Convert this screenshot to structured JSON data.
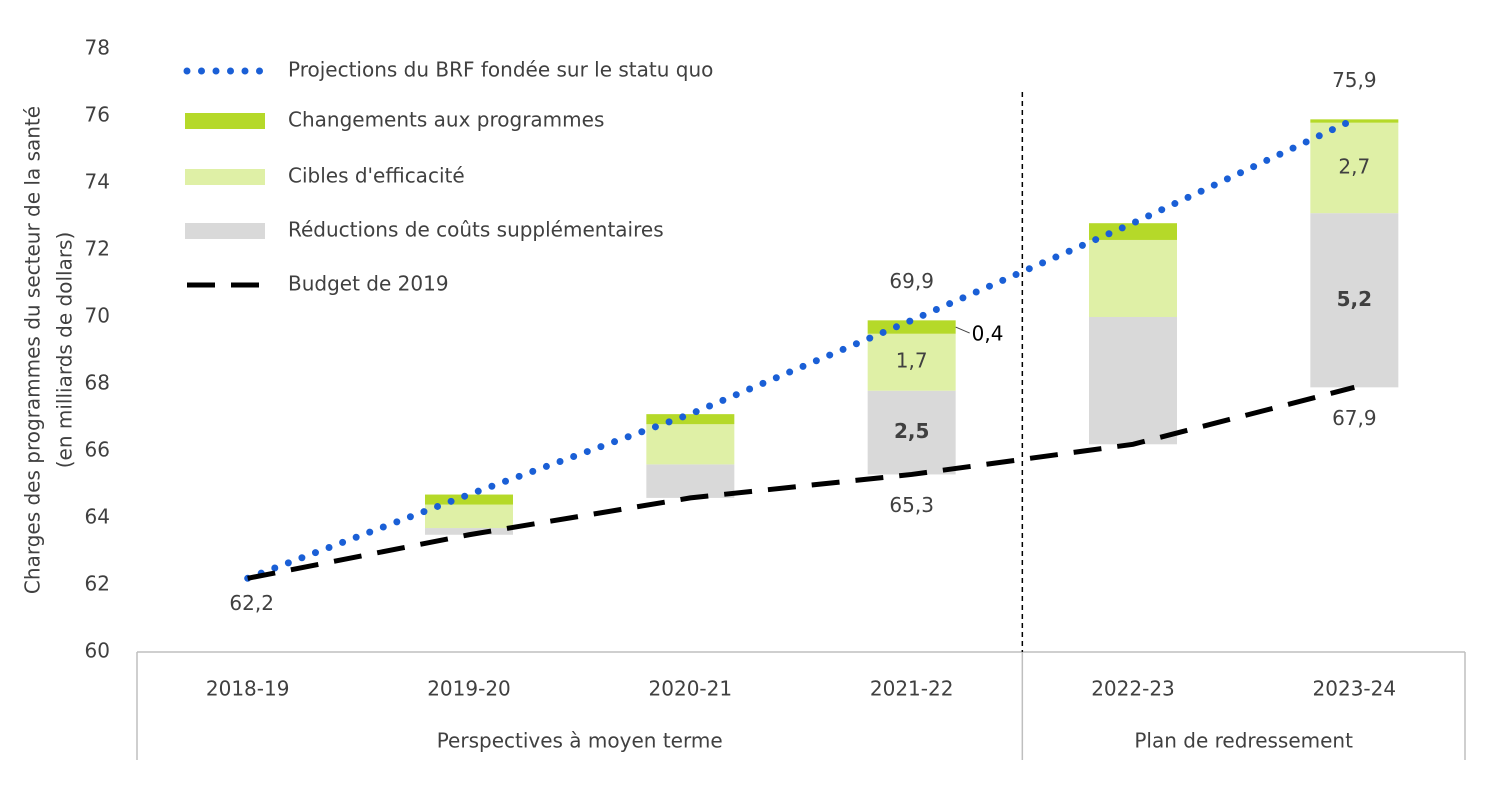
{
  "chart_data": {
    "type": "bar",
    "ylabel": [
      "Charges des programmes du secteur de la santé",
      "(en milliards de dollars)"
    ],
    "categories": [
      "2018-19",
      "2019-20",
      "2020-21",
      "2021-22",
      "2022-23",
      "2023-24"
    ],
    "groups": [
      {
        "label": "Perspectives à moyen terme",
        "span": 4
      },
      {
        "label": "Plan de redressement",
        "span": 2
      }
    ],
    "ylim": [
      60,
      78
    ],
    "yticks": [
      60,
      62,
      64,
      66,
      68,
      70,
      72,
      74,
      76,
      78
    ],
    "series": [
      {
        "name": "Projections du BRF fondée sur le statu quo",
        "type": "line",
        "style": "dotted",
        "color": "#1a5fd6",
        "values": [
          62.2,
          64.7,
          67.1,
          69.9,
          72.8,
          75.9
        ],
        "value_labels": [
          "62,2",
          null,
          null,
          "69,9",
          null,
          "75,9"
        ]
      },
      {
        "name": "Changements aux programmes",
        "type": "bar",
        "color": "#b5d929",
        "values": [
          null,
          0.3,
          0.3,
          0.4,
          0.5,
          0.1
        ],
        "value_labels": [
          null,
          null,
          null,
          "0,4",
          null,
          null
        ]
      },
      {
        "name": "Cibles d'efficacité",
        "type": "bar",
        "color": "#dff0a6",
        "values": [
          null,
          0.7,
          1.2,
          1.7,
          2.3,
          2.7
        ],
        "value_labels": [
          null,
          null,
          null,
          "1,7",
          null,
          "2,7"
        ]
      },
      {
        "name": "Réductions de coûts supplémentaires",
        "type": "bar",
        "color": "#d9d9d9",
        "label_bold": true,
        "values": [
          null,
          0.2,
          1.0,
          2.5,
          3.8,
          5.2
        ],
        "value_labels": [
          null,
          null,
          null,
          "2,5",
          null,
          "5,2"
        ]
      },
      {
        "name": "Budget de 2019",
        "type": "line",
        "style": "dashed",
        "color": "#000000",
        "values": [
          62.2,
          63.5,
          64.6,
          65.3,
          66.2,
          67.9
        ],
        "value_labels": [
          null,
          null,
          null,
          "65,3",
          null,
          "67,9"
        ]
      }
    ]
  }
}
